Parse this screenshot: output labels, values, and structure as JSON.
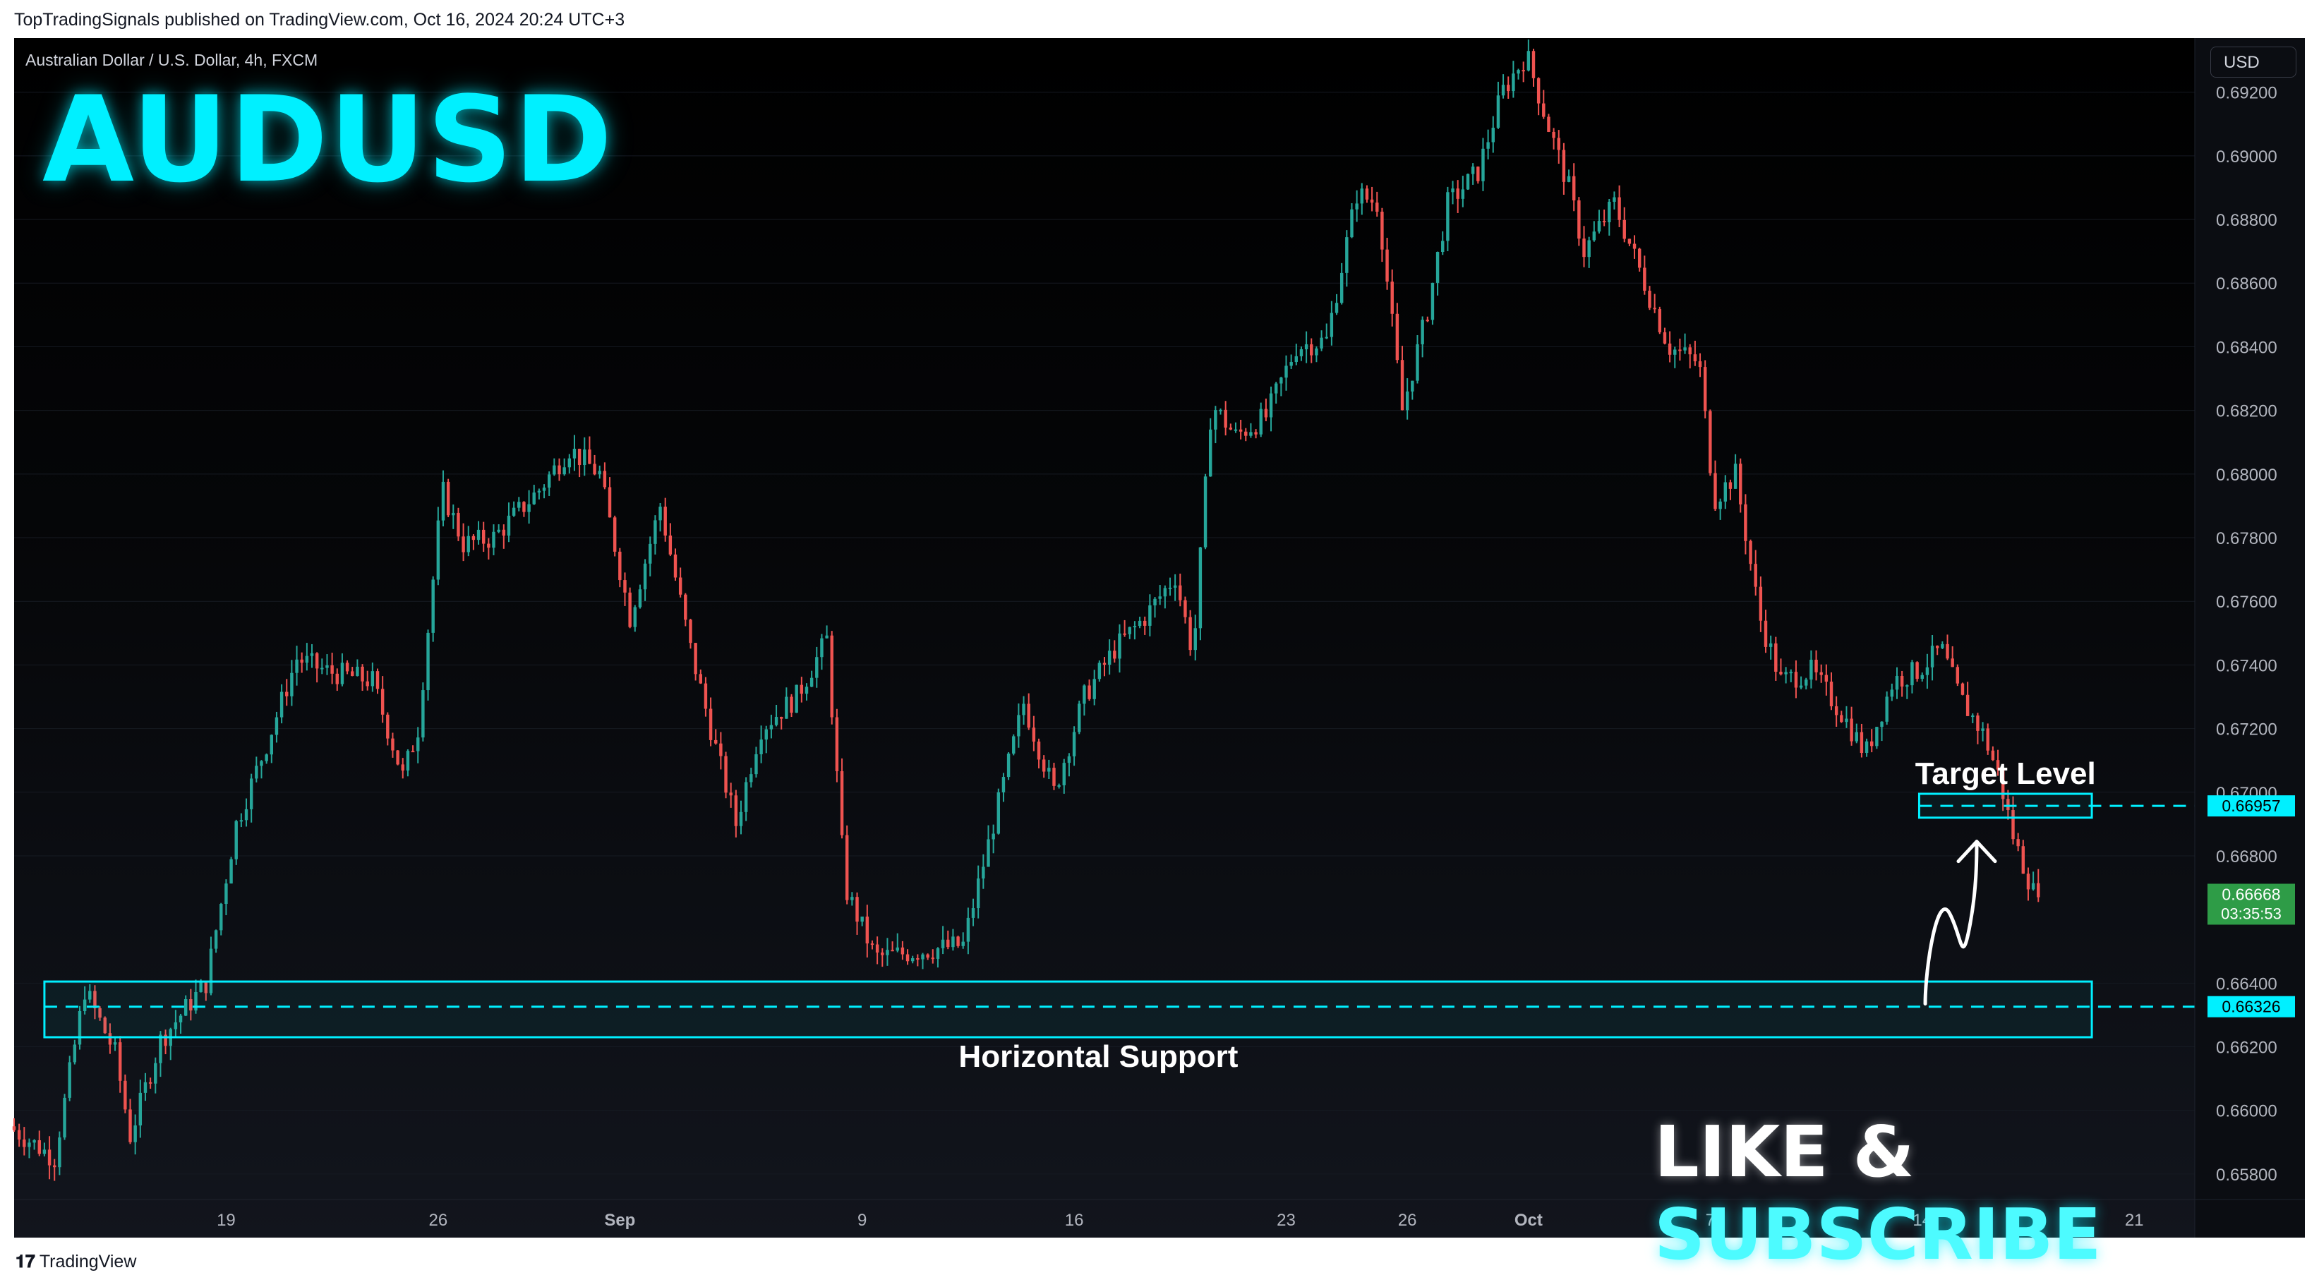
{
  "header": {
    "publisher_line": "TopTradingSignals published on TradingView.com, Oct 16, 2024 20:24 UTC+3"
  },
  "symbol_label": "Australian Dollar / U.S. Dollar, 4h, FXCM",
  "currency_button": "USD",
  "overlay": {
    "title": "AUDUSD",
    "like": "LIKE &",
    "subscribe": "SUBSCRIBE",
    "target_label": "Target Level",
    "support_label": "Horizontal Support"
  },
  "footer": {
    "logo": "TradingView"
  },
  "colors": {
    "up": "#26a69a",
    "down": "#ef5350",
    "accent": "#00f0ff",
    "price_badge": "#2e9c47"
  },
  "chart_data": {
    "type": "candlestick",
    "timeframe": "4h",
    "ylim": [
      0.6572,
      0.6937
    ],
    "y_ticks": [
      "0.69200",
      "0.69000",
      "0.68800",
      "0.68600",
      "0.68400",
      "0.68200",
      "0.68000",
      "0.67800",
      "0.67600",
      "0.67400",
      "0.67200",
      "0.67000",
      "0.66800",
      "0.66400",
      "0.66200",
      "0.66000",
      "0.65800"
    ],
    "x_ticks": [
      {
        "label": "19",
        "day": 7,
        "bold": false
      },
      {
        "label": "26",
        "day": 14,
        "bold": false
      },
      {
        "label": "Sep",
        "day": 20,
        "bold": true
      },
      {
        "label": "9",
        "day": 28,
        "bold": false
      },
      {
        "label": "16",
        "day": 35,
        "bold": false
      },
      {
        "label": "23",
        "day": 42,
        "bold": false
      },
      {
        "label": "26",
        "day": 46,
        "bold": false
      },
      {
        "label": "Oct",
        "day": 50,
        "bold": true
      },
      {
        "label": "7",
        "day": 56,
        "bold": false
      },
      {
        "label": "14",
        "day": 63,
        "bold": false
      },
      {
        "label": "21",
        "day": 70,
        "bold": false
      }
    ],
    "x_start_day": 0,
    "x_end_day": 72,
    "last_candle_day": 66.9,
    "price_path": [
      [
        0,
        0.6595
      ],
      [
        1.5,
        0.6585
      ],
      [
        2.5,
        0.6638
      ],
      [
        3.5,
        0.6618
      ],
      [
        4,
        0.6592
      ],
      [
        5,
        0.6622
      ],
      [
        6.5,
        0.664
      ],
      [
        7.5,
        0.669
      ],
      [
        8.5,
        0.6715
      ],
      [
        9.5,
        0.6742
      ],
      [
        10.5,
        0.6738
      ],
      [
        12,
        0.6735
      ],
      [
        13,
        0.6705
      ],
      [
        13.5,
        0.672
      ],
      [
        14.3,
        0.6795
      ],
      [
        15,
        0.6778
      ],
      [
        16,
        0.678
      ],
      [
        17.5,
        0.6795
      ],
      [
        18.5,
        0.6808
      ],
      [
        19.5,
        0.68
      ],
      [
        20.5,
        0.6755
      ],
      [
        21.5,
        0.679
      ],
      [
        22.5,
        0.6745
      ],
      [
        23.3,
        0.6715
      ],
      [
        24,
        0.669
      ],
      [
        24.8,
        0.672
      ],
      [
        26,
        0.673
      ],
      [
        27,
        0.6748
      ],
      [
        27.6,
        0.667
      ],
      [
        28.6,
        0.6648
      ],
      [
        30,
        0.665
      ],
      [
        31.5,
        0.6652
      ],
      [
        32.5,
        0.669
      ],
      [
        33.5,
        0.6728
      ],
      [
        34.5,
        0.67
      ],
      [
        35.5,
        0.673
      ],
      [
        36.5,
        0.6745
      ],
      [
        37.5,
        0.6755
      ],
      [
        38.5,
        0.6768
      ],
      [
        39.1,
        0.6743
      ],
      [
        39.7,
        0.6822
      ],
      [
        40.5,
        0.6812
      ],
      [
        41.5,
        0.6818
      ],
      [
        42.5,
        0.684
      ],
      [
        43.5,
        0.6842
      ],
      [
        44.5,
        0.6888
      ],
      [
        45.2,
        0.6885
      ],
      [
        46,
        0.682
      ],
      [
        46.8,
        0.685
      ],
      [
        47.5,
        0.6885
      ],
      [
        48.5,
        0.6895
      ],
      [
        49.3,
        0.692
      ],
      [
        50.1,
        0.6932
      ],
      [
        50.8,
        0.691
      ],
      [
        51.5,
        0.689
      ],
      [
        52,
        0.687
      ],
      [
        53,
        0.6885
      ],
      [
        54.2,
        0.6855
      ],
      [
        54.8,
        0.684
      ],
      [
        55.8,
        0.6835
      ],
      [
        56.3,
        0.6792
      ],
      [
        57,
        0.68
      ],
      [
        57.8,
        0.6755
      ],
      [
        58.5,
        0.6735
      ],
      [
        59.5,
        0.6738
      ],
      [
        60.5,
        0.6725
      ],
      [
        61.3,
        0.6712
      ],
      [
        62.2,
        0.6735
      ],
      [
        63,
        0.6738
      ],
      [
        63.8,
        0.6745
      ],
      [
        64.4,
        0.673
      ],
      [
        65.2,
        0.6718
      ],
      [
        65.7,
        0.6705
      ],
      [
        66.2,
        0.6685
      ],
      [
        66.9,
        0.6667
      ]
    ],
    "support_zone": {
      "price": 0.66326,
      "top": 0.66405,
      "bottom": 0.6623,
      "label": "Horizontal Support",
      "x_from_day": 1,
      "x_to_day": 68.6
    },
    "target_zone": {
      "price": 0.66957,
      "top": 0.66995,
      "bottom": 0.6692,
      "label": "Target Level",
      "x_from_day": 62.9,
      "x_to_day": 68.6
    },
    "price_labels": {
      "target": "0.66957",
      "support": "0.66326",
      "last_price": "0.66668",
      "countdown": "03:35:53"
    }
  }
}
